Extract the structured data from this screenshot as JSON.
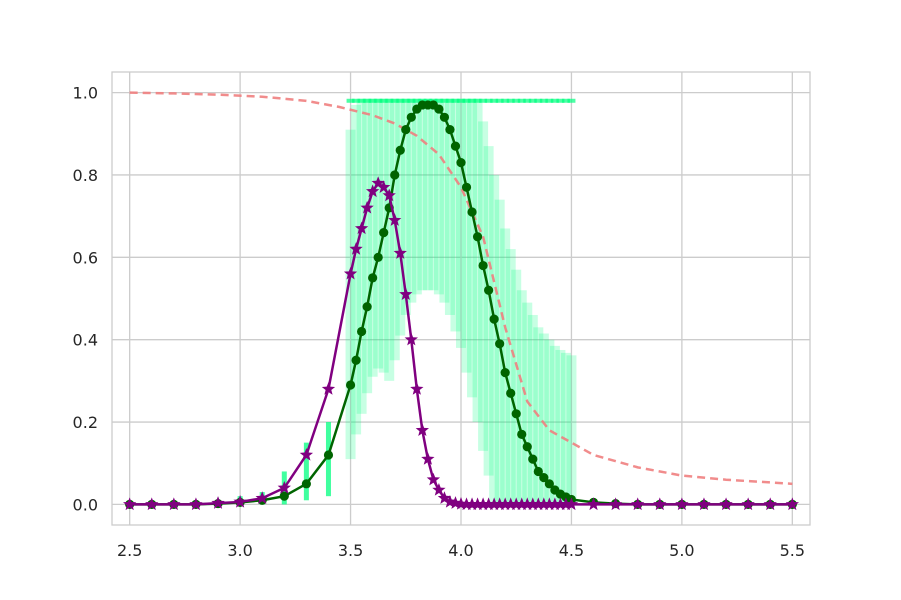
{
  "chart_data": {
    "type": "line",
    "title": "",
    "xlabel": "",
    "ylabel": "",
    "xlim": [
      2.42,
      5.58
    ],
    "ylim": [
      -0.05,
      1.05
    ],
    "grid": true,
    "legend": "none",
    "x_ticks": [
      2.5,
      3.0,
      3.5,
      4.0,
      4.5,
      5.0,
      5.5
    ],
    "x_tick_labels": [
      "2.5",
      "3.0",
      "3.5",
      "4.0",
      "4.5",
      "5.0",
      "5.5"
    ],
    "y_ticks": [
      0.0,
      0.2,
      0.4,
      0.6,
      0.8,
      1.0
    ],
    "y_tick_labels": [
      "0.0",
      "0.2",
      "0.4",
      "0.6",
      "0.8",
      "1.0"
    ],
    "colors": {
      "green_series": "#006400",
      "purple_series": "#800080",
      "dashed_curve": "#f08080",
      "scatter_band": "#00ff7f"
    },
    "series": [
      {
        "style": "dashed",
        "x": [
          2.5,
          2.7,
          2.9,
          3.1,
          3.3,
          3.45,
          3.6,
          3.7,
          3.8,
          3.9,
          4.0,
          4.1,
          4.2,
          4.3,
          4.4,
          4.6,
          4.8,
          5.0,
          5.2,
          5.5
        ],
        "values": [
          1.0,
          0.998,
          0.995,
          0.99,
          0.98,
          0.965,
          0.945,
          0.925,
          0.895,
          0.85,
          0.77,
          0.65,
          0.43,
          0.25,
          0.18,
          0.12,
          0.09,
          0.07,
          0.06,
          0.05
        ]
      },
      {
        "style": "line-circle",
        "x": [
          2.5,
          2.6,
          2.7,
          2.8,
          2.9,
          3.0,
          3.1,
          3.2,
          3.3,
          3.4,
          3.5,
          3.525,
          3.55,
          3.575,
          3.6,
          3.625,
          3.65,
          3.675,
          3.7,
          3.725,
          3.75,
          3.775,
          3.8,
          3.825,
          3.85,
          3.875,
          3.9,
          3.925,
          3.95,
          3.975,
          4.0,
          4.025,
          4.05,
          4.075,
          4.1,
          4.125,
          4.15,
          4.175,
          4.2,
          4.225,
          4.25,
          4.275,
          4.3,
          4.325,
          4.35,
          4.375,
          4.4,
          4.425,
          4.45,
          4.475,
          4.5,
          4.6,
          4.7,
          4.8,
          4.9,
          5.0,
          5.1,
          5.2,
          5.3,
          5.4,
          5.5
        ],
        "values": [
          0.0,
          0.0,
          0.0,
          0.0,
          0.002,
          0.005,
          0.01,
          0.02,
          0.05,
          0.12,
          0.29,
          0.35,
          0.42,
          0.48,
          0.55,
          0.6,
          0.66,
          0.72,
          0.8,
          0.86,
          0.91,
          0.94,
          0.96,
          0.97,
          0.97,
          0.97,
          0.96,
          0.94,
          0.91,
          0.87,
          0.83,
          0.77,
          0.71,
          0.65,
          0.58,
          0.52,
          0.45,
          0.39,
          0.32,
          0.27,
          0.22,
          0.17,
          0.14,
          0.11,
          0.08,
          0.065,
          0.05,
          0.035,
          0.025,
          0.018,
          0.012,
          0.005,
          0.002,
          0.0,
          0.0,
          0.0,
          0.0,
          0.0,
          0.0,
          0.0,
          0.0
        ]
      },
      {
        "style": "line-star",
        "x": [
          2.5,
          2.6,
          2.7,
          2.8,
          2.9,
          3.0,
          3.1,
          3.2,
          3.3,
          3.4,
          3.5,
          3.525,
          3.55,
          3.575,
          3.6,
          3.625,
          3.65,
          3.675,
          3.7,
          3.725,
          3.75,
          3.775,
          3.8,
          3.825,
          3.85,
          3.875,
          3.9,
          3.925,
          3.95,
          3.975,
          4.0,
          4.025,
          4.05,
          4.075,
          4.1,
          4.125,
          4.15,
          4.175,
          4.2,
          4.225,
          4.25,
          4.275,
          4.3,
          4.325,
          4.35,
          4.375,
          4.4,
          4.425,
          4.45,
          4.475,
          4.5,
          4.6,
          4.7,
          4.8,
          4.9,
          5.0,
          5.1,
          5.2,
          5.3,
          5.4,
          5.5
        ],
        "values": [
          0.0,
          0.0,
          0.0,
          0.0,
          0.003,
          0.006,
          0.015,
          0.04,
          0.12,
          0.28,
          0.56,
          0.62,
          0.67,
          0.72,
          0.76,
          0.78,
          0.77,
          0.75,
          0.69,
          0.61,
          0.51,
          0.4,
          0.28,
          0.18,
          0.11,
          0.06,
          0.035,
          0.015,
          0.006,
          0.003,
          0.001,
          0.0,
          0.0,
          0.0,
          0.0,
          0.0,
          0.0,
          0.0,
          0.0,
          0.0,
          0.0,
          0.0,
          0.0,
          0.0,
          0.0,
          0.0,
          0.0,
          0.0,
          0.0,
          0.0,
          0.0,
          0.0,
          0.0,
          0.0,
          0.0,
          0.0,
          0.0,
          0.0,
          0.0,
          0.0,
          0.0
        ]
      }
    ],
    "scatter_band": {
      "x_range": [
        3.5,
        4.5
      ],
      "columns": [
        {
          "x": 3.0,
          "low": 0.0,
          "high": 0.02
        },
        {
          "x": 3.1,
          "low": 0.0,
          "high": 0.03
        },
        {
          "x": 3.2,
          "low": 0.0,
          "high": 0.08
        },
        {
          "x": 3.3,
          "low": 0.01,
          "high": 0.15
        },
        {
          "x": 3.4,
          "low": 0.02,
          "high": 0.2
        }
      ]
    }
  }
}
